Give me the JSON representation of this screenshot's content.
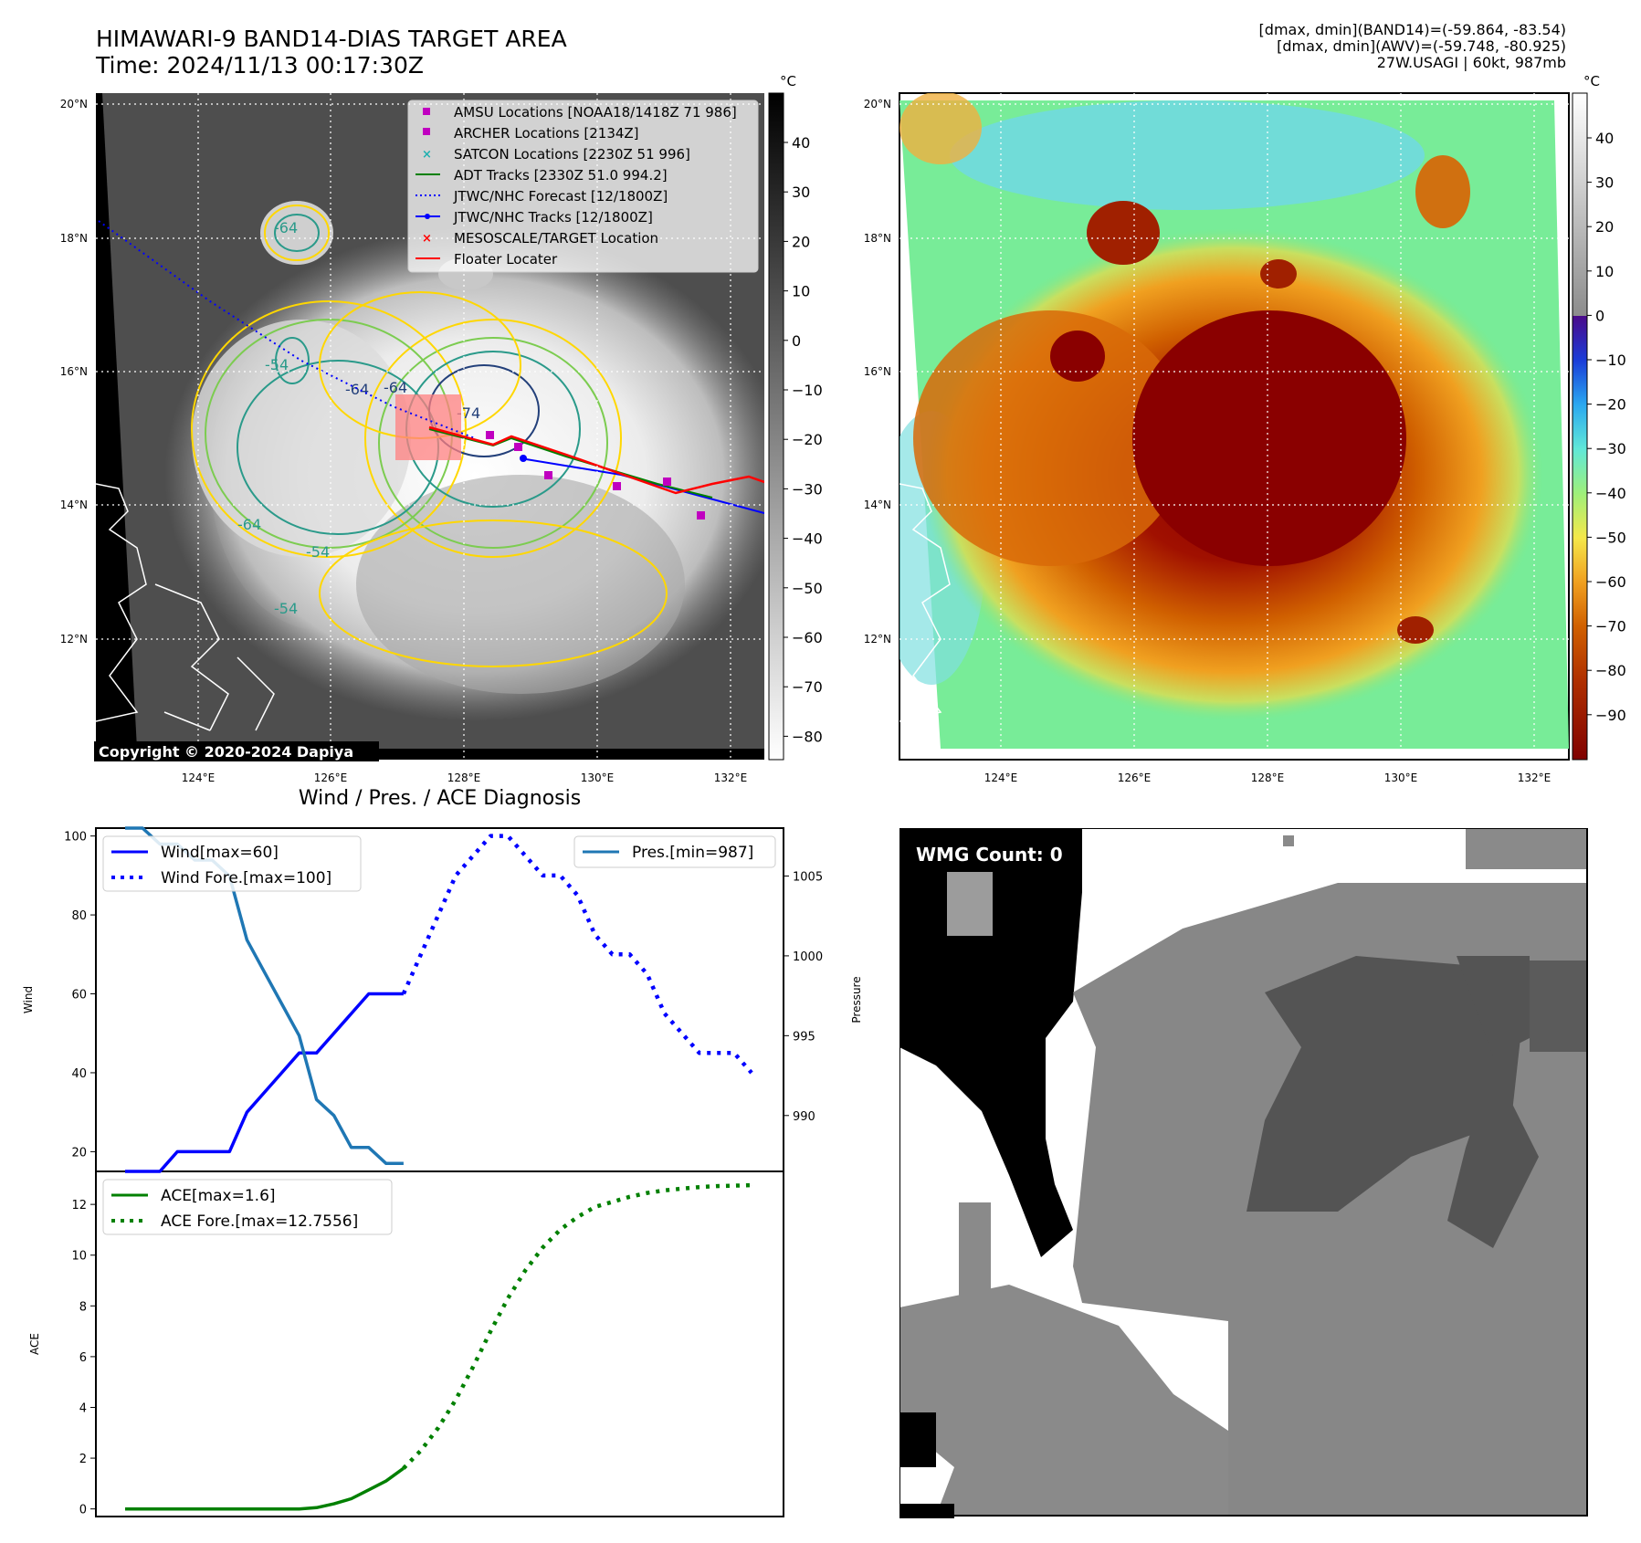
{
  "header": {
    "title_line1": "HIMAWARI-9 BAND14-DIAS TARGET AREA",
    "title_line2": "Time: 2024/11/13 00:17:30Z",
    "info_line1": "[dmax, dmin](BAND14)=(-59.864, -83.54)",
    "info_line2": "[dmax, dmin](AWV)=(-59.748, -80.925)",
    "info_line3": "27W.USAGI | 60kt, 987mb"
  },
  "map": {
    "lat_labels": [
      "20°N",
      "18°N",
      "16°N",
      "14°N",
      "12°N"
    ],
    "lon_labels": [
      "124°E",
      "126°E",
      "128°E",
      "130°E",
      "132°E"
    ],
    "copyright": "Copyright © 2020-2024 Dapiya",
    "contour_labels": [
      "-64",
      "-54",
      "-64",
      "-54",
      "-54",
      "-64",
      "-74",
      "-64"
    ],
    "legend": [
      {
        "label": "AMSU Locations [NOAA18/1418Z 71 986]",
        "color": "#c000c0",
        "marker": "square"
      },
      {
        "label": "ARCHER Locations [2134Z]",
        "color": "#c000c0",
        "marker": "square"
      },
      {
        "label": "SATCON Locations [2230Z 51 996]",
        "color": "#20b0b0",
        "marker": "x"
      },
      {
        "label": "ADT Tracks [2330Z 51.0 994.2]",
        "color": "#008000",
        "marker": "line"
      },
      {
        "label": "JTWC/NHC Forecast [12/1800Z]",
        "color": "#0000ff",
        "marker": "dotted"
      },
      {
        "label": "JTWC/NHC Tracks [12/1800Z]",
        "color": "#0000ff",
        "marker": "line-dot"
      },
      {
        "label": "MESOSCALE/TARGET Location",
        "color": "#ff0000",
        "marker": "x"
      },
      {
        "label": "Floater Locater",
        "color": "#ff0000",
        "marker": "line"
      }
    ]
  },
  "colorbar_gray": {
    "unit": "°C",
    "ticks": [
      "40",
      "30",
      "20",
      "10",
      "0",
      "−10",
      "−20",
      "−30",
      "−40",
      "−50",
      "−60",
      "−70",
      "−80"
    ]
  },
  "colorbar_color": {
    "unit": "°C",
    "ticks": [
      "40",
      "30",
      "20",
      "10",
      "0",
      "−10",
      "−20",
      "−30",
      "−40",
      "−50",
      "−60",
      "−70",
      "−80",
      "−90"
    ]
  },
  "wmg": {
    "label": "WMG Count: 0"
  },
  "chart_data": [
    {
      "type": "line",
      "title": "Wind / Pres. / ACE Diagnosis",
      "ylabel": "Wind",
      "ylabel_right": "Pressure",
      "ylim": [
        15,
        102
      ],
      "ylim_right": [
        986.5,
        1008
      ],
      "yticks": [
        20,
        40,
        60,
        80,
        100
      ],
      "yticks_right": [
        990,
        995,
        1000,
        1005
      ],
      "x": [
        0,
        1,
        2,
        3,
        4,
        5,
        6,
        7,
        8,
        9,
        10,
        11,
        12,
        13,
        14,
        15,
        16,
        17,
        18,
        19,
        20,
        21,
        22,
        23,
        24,
        25,
        26,
        27,
        28,
        29,
        30,
        31,
        32,
        33,
        34,
        35,
        36
      ],
      "series": [
        {
          "name": "Wind[max=60]",
          "axis": "left",
          "style": "solid",
          "color": "#0000ff",
          "x": [
            0,
            1,
            2,
            3,
            4,
            5,
            6,
            7,
            8,
            9,
            10,
            11,
            12,
            13,
            14,
            15,
            16
          ],
          "values": [
            15,
            15,
            15,
            20,
            20,
            20,
            20,
            30,
            35,
            40,
            45,
            45,
            50,
            55,
            60,
            60,
            60
          ]
        },
        {
          "name": "Wind Fore.[max=100]",
          "axis": "left",
          "style": "dotted",
          "color": "#0000ff",
          "x": [
            16,
            17,
            18,
            19,
            20,
            21,
            22,
            23,
            24,
            25,
            26,
            27,
            28,
            29,
            30,
            31,
            32,
            33,
            34,
            35,
            36
          ],
          "values": [
            60,
            70,
            80,
            90,
            95,
            100,
            100,
            95,
            90,
            90,
            85,
            75,
            70,
            70,
            65,
            55,
            50,
            45,
            45,
            45,
            40
          ]
        },
        {
          "name": "Pres.[min=987]",
          "axis": "right",
          "style": "solid",
          "color": "#1f77b4",
          "x": [
            0,
            1,
            2,
            3,
            4,
            5,
            6,
            7,
            8,
            9,
            10,
            11,
            12,
            13,
            14,
            15,
            16
          ],
          "values": [
            1008,
            1008,
            1007,
            1007,
            1006,
            1006,
            1005,
            1001,
            999,
            997,
            995,
            991,
            990,
            988,
            988,
            987,
            987
          ]
        }
      ]
    },
    {
      "type": "line",
      "ylabel": "ACE",
      "ylim": [
        -0.3,
        13.3
      ],
      "yticks": [
        0,
        2,
        4,
        6,
        8,
        10,
        12
      ],
      "series": [
        {
          "name": "ACE[max=1.6]",
          "style": "solid",
          "color": "#008000",
          "x": [
            0,
            2,
            4,
            6,
            8,
            10,
            11,
            12,
            13,
            14,
            15,
            16
          ],
          "values": [
            0,
            0,
            0,
            0,
            0,
            0,
            0.05,
            0.2,
            0.4,
            0.75,
            1.1,
            1.6
          ]
        },
        {
          "name": "ACE Fore.[max=12.7556]",
          "style": "dotted",
          "color": "#008000",
          "x": [
            16,
            17,
            18,
            19,
            20,
            21,
            22,
            23,
            24,
            25,
            26,
            27,
            28,
            29,
            30,
            31,
            32,
            33,
            34,
            35,
            36
          ],
          "values": [
            1.6,
            2.3,
            3.2,
            4.3,
            5.6,
            7.0,
            8.3,
            9.4,
            10.3,
            11.0,
            11.5,
            11.9,
            12.1,
            12.3,
            12.45,
            12.55,
            12.62,
            12.68,
            12.72,
            12.74,
            12.7556
          ]
        }
      ]
    }
  ]
}
